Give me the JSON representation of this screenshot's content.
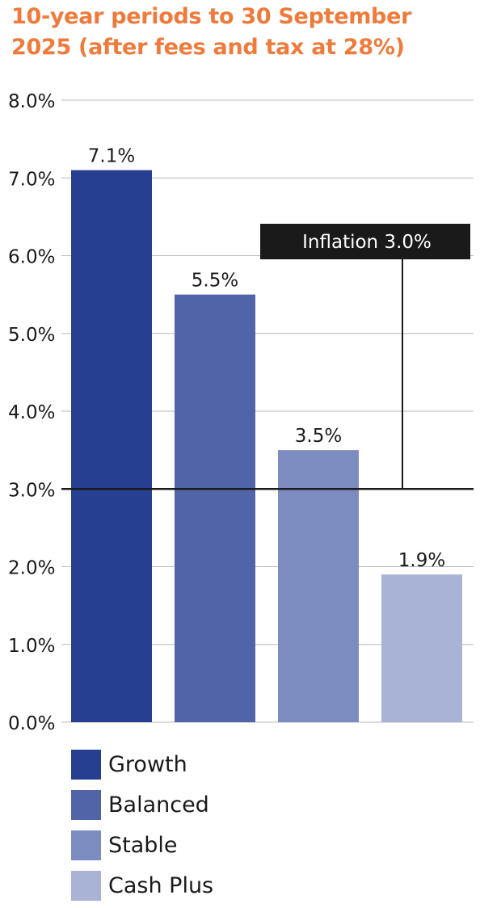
{
  "title": {
    "line1": "10-year periods to 30 September",
    "line2": "2025 (after fees and tax at 28%)"
  },
  "colors": {
    "title": "#ee7b3b",
    "grid": "#b8b8b8",
    "inflation_line": "#1a1a1a",
    "inflation_box": "#1a1a1a",
    "inflation_text": "#ffffff",
    "text": "#1a1a1a"
  },
  "chart_data": {
    "type": "bar",
    "title": "10-year periods to 30 September 2025 (after fees and tax at 28%)",
    "categories": [
      "Growth",
      "Balanced",
      "Stable",
      "Cash Plus"
    ],
    "values": [
      7.1,
      5.5,
      3.5,
      1.9
    ],
    "data_labels": [
      "7.1%",
      "5.5%",
      "3.5%",
      "1.9%"
    ],
    "bar_colors": [
      "#273f91",
      "#5264a8",
      "#7c8bc0",
      "#a9b3d6"
    ],
    "ylim": [
      0,
      8
    ],
    "yticks": [
      0,
      1,
      2,
      3,
      4,
      5,
      6,
      7,
      8
    ],
    "ytick_labels": [
      "0.0%",
      "1.0%",
      "2.0%",
      "3.0%",
      "4.0%",
      "5.0%",
      "6.0%",
      "7.0%",
      "8.0%"
    ],
    "grid": true,
    "reference_line": {
      "value": 3.0,
      "label": "Inflation 3.0%"
    },
    "legend": [
      {
        "label": "Growth",
        "color": "#273f91"
      },
      {
        "label": "Balanced",
        "color": "#5264a8"
      },
      {
        "label": "Stable",
        "color": "#7c8bc0"
      },
      {
        "label": "Cash Plus",
        "color": "#a9b3d6"
      }
    ],
    "legend_position": "bottom-left"
  }
}
